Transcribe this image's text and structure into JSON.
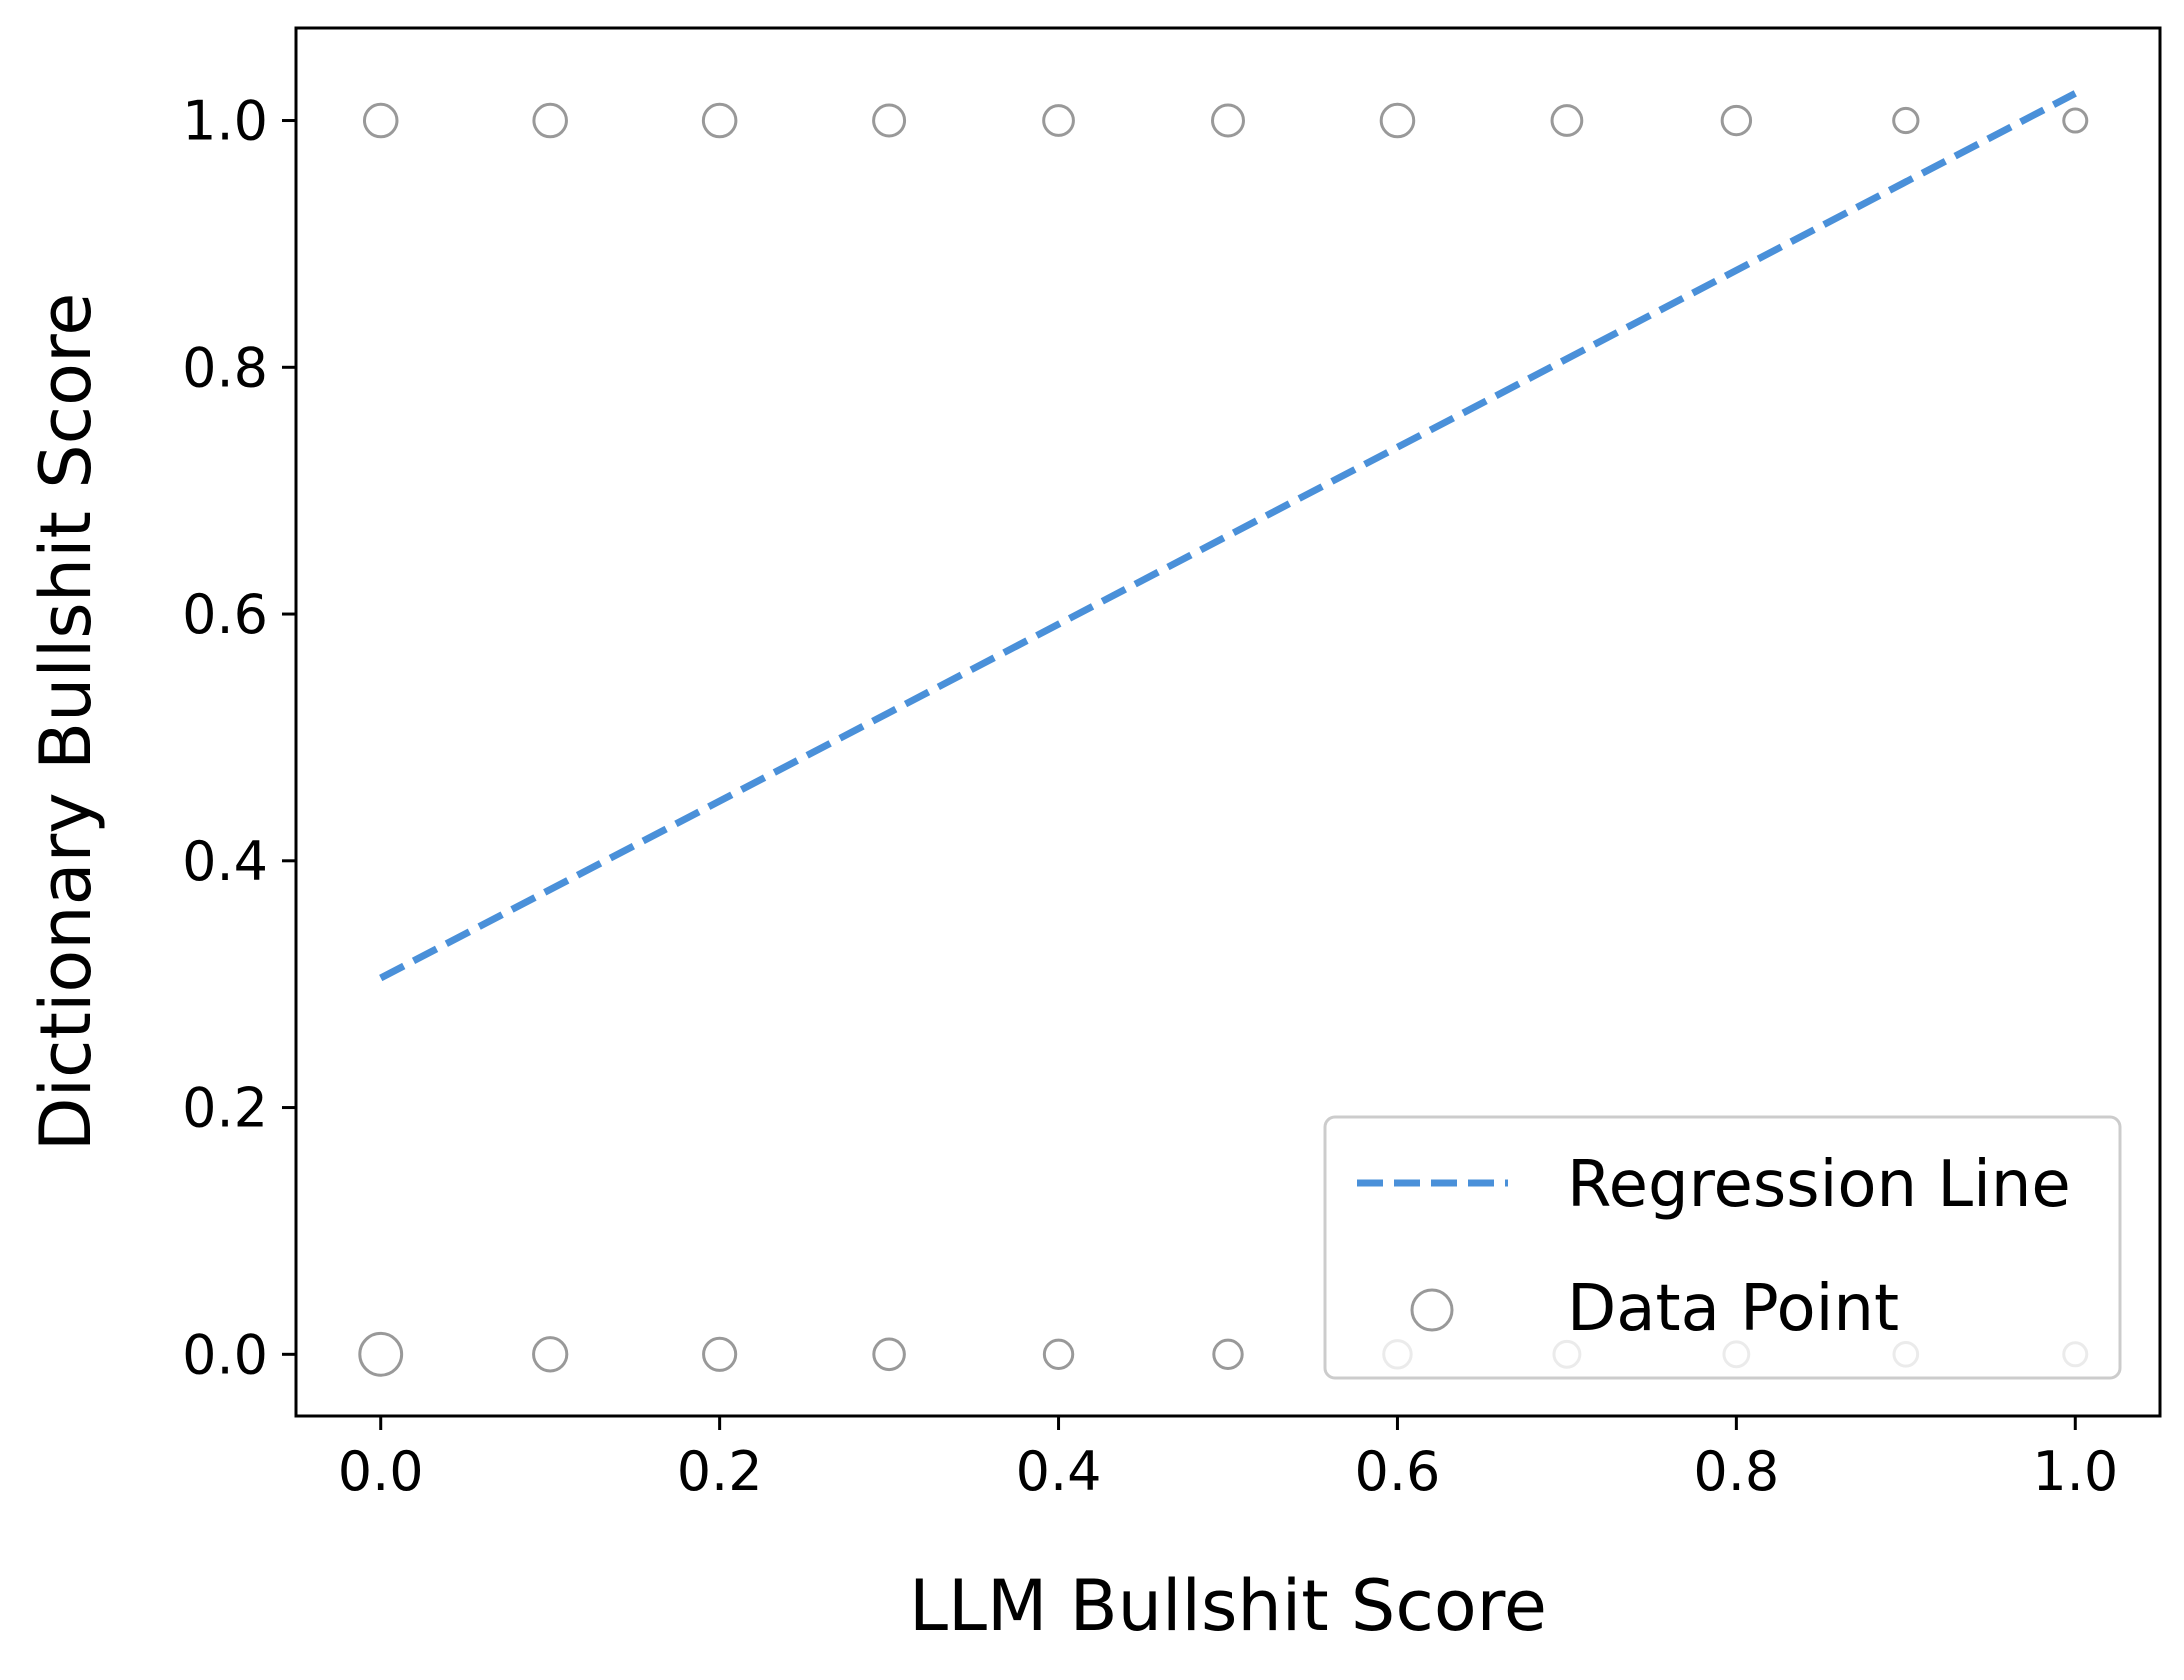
{
  "chart_data": {
    "type": "scatter",
    "title": "",
    "xlabel": "LLM Bullshit Score",
    "ylabel": "Dictionary Bullshit Score",
    "xlim": [
      -0.05,
      1.05
    ],
    "ylim": [
      -0.05,
      1.075
    ],
    "xticks": [
      "0.0",
      "0.2",
      "0.4",
      "0.6",
      "0.8",
      "1.0"
    ],
    "yticks": [
      "0.0",
      "0.2",
      "0.4",
      "0.6",
      "0.8",
      "1.0"
    ],
    "grid": false,
    "legend_position": "lower-right",
    "series": [
      {
        "name": "Regression Line",
        "kind": "line",
        "style": "dashed",
        "color": "#4a90d9",
        "x": [
          0.0,
          1.0
        ],
        "y": [
          0.305,
          1.022
        ]
      },
      {
        "name": "Data Point",
        "kind": "scatter",
        "color": "#999999",
        "points": [
          {
            "x": 0.0,
            "y": 1.0,
            "size": 3
          },
          {
            "x": 0.1,
            "y": 1.0,
            "size": 3
          },
          {
            "x": 0.2,
            "y": 1.0,
            "size": 3
          },
          {
            "x": 0.3,
            "y": 1.0,
            "size": 2.6
          },
          {
            "x": 0.4,
            "y": 1.0,
            "size": 2.3
          },
          {
            "x": 0.5,
            "y": 1.0,
            "size": 2.6
          },
          {
            "x": 0.6,
            "y": 1.0,
            "size": 3
          },
          {
            "x": 0.7,
            "y": 1.0,
            "size": 2.3
          },
          {
            "x": 0.8,
            "y": 1.0,
            "size": 2.0
          },
          {
            "x": 0.9,
            "y": 1.0,
            "size": 1.2
          },
          {
            "x": 1.0,
            "y": 1.0,
            "size": 1.0
          },
          {
            "x": 0.0,
            "y": 0.0,
            "size": 6
          },
          {
            "x": 0.1,
            "y": 0.0,
            "size": 3.2
          },
          {
            "x": 0.2,
            "y": 0.0,
            "size": 2.9
          },
          {
            "x": 0.3,
            "y": 0.0,
            "size": 2.5
          },
          {
            "x": 0.4,
            "y": 0.0,
            "size": 2.0
          },
          {
            "x": 0.5,
            "y": 0.0,
            "size": 2.0
          },
          {
            "x": 0.6,
            "y": 0.0,
            "size": 1.8
          },
          {
            "x": 0.7,
            "y": 0.0,
            "size": 1.5
          },
          {
            "x": 0.8,
            "y": 0.0,
            "size": 1.3
          },
          {
            "x": 0.9,
            "y": 0.0,
            "size": 1.1
          },
          {
            "x": 1.0,
            "y": 0.0,
            "size": 1.0
          }
        ]
      }
    ]
  }
}
